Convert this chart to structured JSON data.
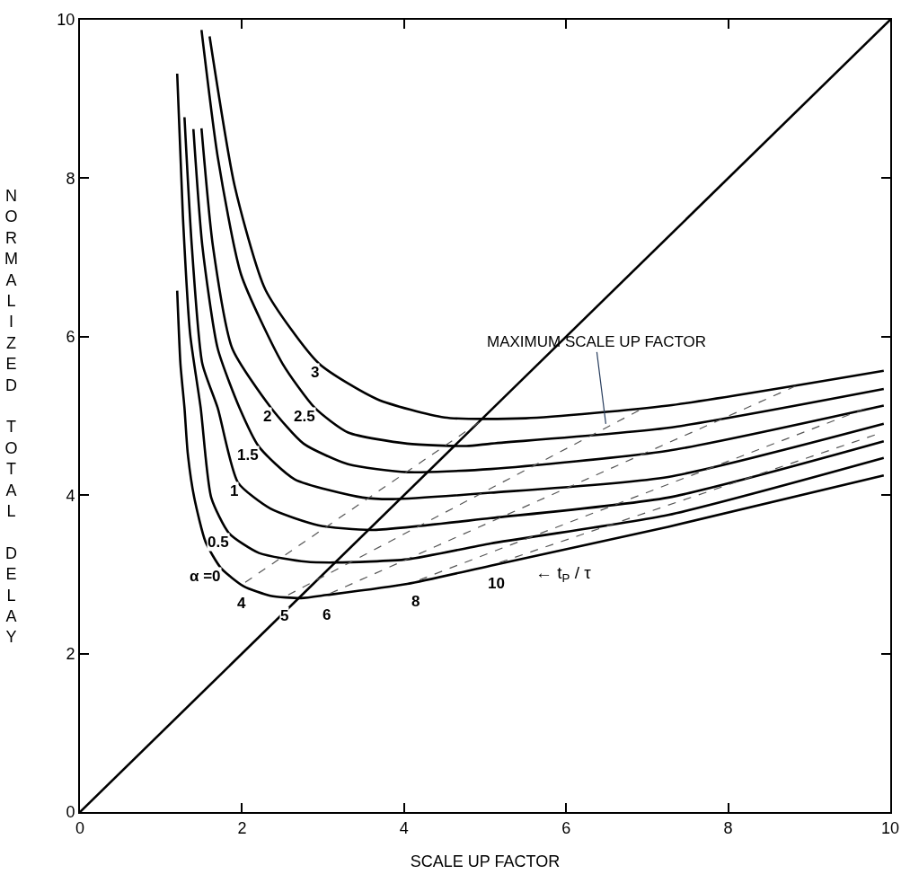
{
  "chart_data": {
    "type": "line",
    "xlabel": "SCALE UP FACTOR",
    "ylabel": "NORMALIZED TOTAL DELAY",
    "xlim": [
      0,
      10
    ],
    "ylim": [
      0,
      10
    ],
    "xticks": [
      0,
      2,
      4,
      6,
      8,
      10
    ],
    "yticks": [
      0,
      2,
      4,
      6,
      8,
      10
    ],
    "grid": false,
    "series": [
      {
        "name": "α =0",
        "color": "#000000",
        "line_style": "solid",
        "x": [
          1.2,
          1.24,
          1.29,
          1.33,
          1.41,
          1.55,
          1.74,
          2.02,
          2.35,
          2.73,
          3.05,
          4.04,
          5.07,
          7.26,
          9.92
        ],
        "values": [
          6.58,
          5.66,
          5.1,
          4.53,
          3.97,
          3.41,
          3.08,
          2.85,
          2.73,
          2.7,
          2.74,
          2.88,
          3.11,
          3.6,
          4.25
        ]
      },
      {
        "name": "0.5",
        "color": "#000000",
        "line_style": "solid",
        "x": [
          1.2,
          1.27,
          1.36,
          1.49,
          1.62,
          1.84,
          2.21,
          2.79,
          3.16,
          4.04,
          5.07,
          7.26,
          9.92
        ],
        "values": [
          9.32,
          7.53,
          6.03,
          5.1,
          3.97,
          3.52,
          3.27,
          3.16,
          3.15,
          3.19,
          3.39,
          3.75,
          4.47
        ]
      },
      {
        "name": "1",
        "color": "#000000",
        "line_style": "solid",
        "x": [
          1.29,
          1.38,
          1.51,
          1.7,
          1.95,
          2.35,
          2.94,
          3.6,
          5.07,
          7.26,
          9.92
        ],
        "values": [
          8.77,
          7.15,
          5.66,
          5.1,
          4.16,
          3.83,
          3.62,
          3.56,
          3.71,
          3.97,
          4.68
        ]
      },
      {
        "name": "1.5",
        "color": "#000000",
        "line_style": "solid",
        "x": [
          1.4,
          1.51,
          1.7,
          1.97,
          2.21,
          2.65,
          3.49,
          3.86,
          5.07,
          7.26,
          9.92
        ],
        "values": [
          8.62,
          7.15,
          5.85,
          5.1,
          4.61,
          4.2,
          3.97,
          3.95,
          4.03,
          4.23,
          4.9
        ]
      },
      {
        "name": "2",
        "color": "#000000",
        "line_style": "solid",
        "x": [
          1.5,
          1.64,
          1.88,
          2.36,
          2.76,
          3.31,
          4.04,
          5.07,
          7.26,
          9.92
        ],
        "values": [
          8.63,
          7.15,
          5.85,
          5.1,
          4.65,
          4.39,
          4.29,
          4.33,
          4.56,
          5.13
        ]
      },
      {
        "name": "2.5",
        "color": "#000000",
        "line_style": "solid",
        "x": [
          1.5,
          1.7,
          1.99,
          2.5,
          2.9,
          3.31,
          4.04,
          4.77,
          5.07,
          7.26,
          9.92
        ],
        "values": [
          9.87,
          8.27,
          6.78,
          5.66,
          5.1,
          4.79,
          4.65,
          4.62,
          4.65,
          4.85,
          5.34
        ]
      },
      {
        "name": "3",
        "color": "#000000",
        "line_style": "solid",
        "x": [
          1.6,
          1.91,
          2.29,
          2.95,
          3.67,
          4.5,
          5.5,
          7.26,
          9.92
        ],
        "values": [
          9.79,
          7.9,
          6.59,
          5.66,
          5.21,
          4.98,
          4.97,
          5.13,
          5.57
        ]
      },
      {
        "color": "#000000",
        "line_style": "solid",
        "x": [
          0,
          10
        ],
        "values": [
          0,
          10
        ]
      },
      {
        "name": "4",
        "color": "#555555",
        "line_style": "dashed",
        "x": [
          2.04,
          5.0
        ],
        "values": [
          2.9,
          4.97
        ]
      },
      {
        "name": "5",
        "color": "#555555",
        "line_style": "dashed",
        "x": [
          2.57,
          6.9
        ],
        "values": [
          2.74,
          5.07
        ]
      },
      {
        "name": "6",
        "color": "#555555",
        "line_style": "dashed",
        "x": [
          3.09,
          8.84
        ],
        "values": [
          2.76,
          5.38
        ]
      },
      {
        "name": "8",
        "color": "#555555",
        "line_style": "dashed",
        "x": [
          4.19,
          9.71
        ],
        "values": [
          2.93,
          5.1
        ]
      },
      {
        "name": "10",
        "color": "#555555",
        "line_style": "dashed",
        "x": [
          5.18,
          9.81
        ],
        "values": [
          3.15,
          4.76
        ]
      }
    ],
    "annotations": [
      {
        "text": "MAXIMUM SCALE UP FACTOR",
        "x": 6.49,
        "y": 4.9
      },
      "← t$_{P}$ / τ"
    ]
  }
}
